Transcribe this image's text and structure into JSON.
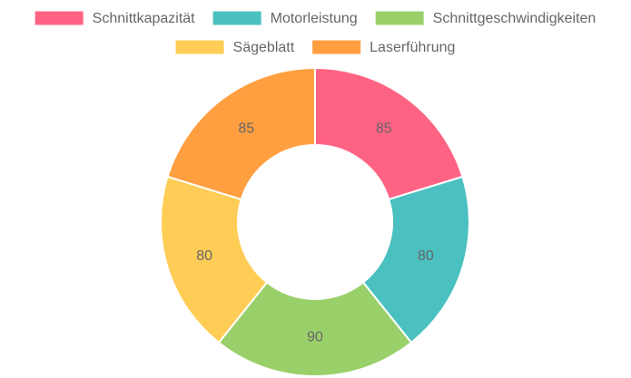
{
  "chart_data": {
    "type": "doughnut",
    "categories": [
      "Schnittkapazität",
      "Motorleistung",
      "Schnittgeschwindigkeiten",
      "Sägeblatt",
      "Laserführung"
    ],
    "values": [
      85,
      80,
      90,
      80,
      85
    ],
    "colors": [
      "#ff6384",
      "#4bc0c0",
      "#9ad06a",
      "#ffcd56",
      "#ff9f40"
    ],
    "legend": "top"
  }
}
